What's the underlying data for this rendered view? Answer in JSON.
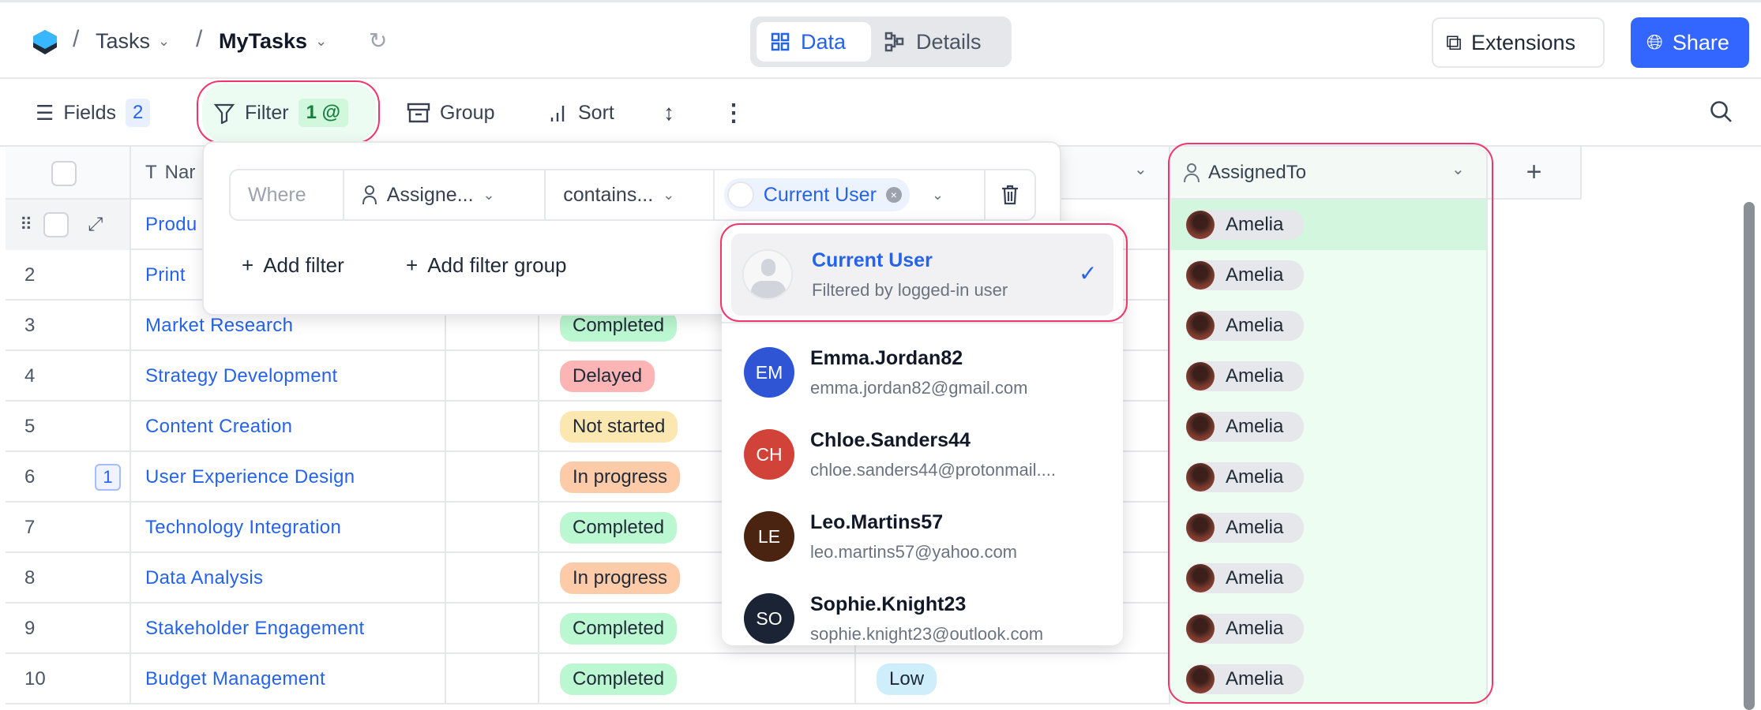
{
  "header": {
    "breadcrumb": [
      "Tasks",
      "MyTasks"
    ],
    "view_tabs": [
      {
        "label": "Data",
        "active": true
      },
      {
        "label": "Details",
        "active": false
      }
    ],
    "extensions_label": "Extensions",
    "share_label": "Share"
  },
  "toolbar": {
    "fields_label": "Fields",
    "fields_count": "2",
    "filter_label": "Filter",
    "filter_count": "1 @",
    "group_label": "Group",
    "sort_label": "Sort"
  },
  "columns": {
    "name": "Name",
    "name_visible": "Nar",
    "assigned": "AssignedTo"
  },
  "filter": {
    "where": "Where",
    "field": "Assigne...",
    "operator": "contains...",
    "value": "Current User",
    "add_filter": "Add filter",
    "add_group": "Add filter group"
  },
  "dropdown": {
    "current": {
      "name": "Current User",
      "sub": "Filtered by logged-in user",
      "selected": true
    },
    "users": [
      {
        "initials": "EM",
        "name": "Emma.Jordan82",
        "email": "emma.jordan82@gmail.com",
        "color": "#2f55d4"
      },
      {
        "initials": "CH",
        "name": "Chloe.Sanders44",
        "email": "chloe.sanders44@protonmail....",
        "color": "#d14338"
      },
      {
        "initials": "LE",
        "name": "Leo.Martins57",
        "email": "leo.martins57@yahoo.com",
        "color": "#4a2410"
      },
      {
        "initials": "SO",
        "name": "Sophie.Knight23",
        "email": "sophie.knight23@outlook.com",
        "color": "#1b2434"
      }
    ]
  },
  "rows": [
    {
      "num": "",
      "name": "Produ",
      "status": "",
      "priority": "",
      "assigned": "Amelia"
    },
    {
      "num": "2",
      "name": "Print",
      "status": "",
      "priority": "",
      "assigned": "Amelia"
    },
    {
      "num": "3",
      "name": "Market Research",
      "status": "Completed",
      "priority": "",
      "assigned": "Amelia"
    },
    {
      "num": "4",
      "name": "Strategy Development",
      "status": "Delayed",
      "priority": "",
      "assigned": "Amelia"
    },
    {
      "num": "5",
      "name": "Content Creation",
      "status": "Not started",
      "priority": "",
      "assigned": "Amelia"
    },
    {
      "num": "6",
      "name": "User Experience Design",
      "status": "In progress",
      "priority": "",
      "assigned": "Amelia",
      "comments": "1"
    },
    {
      "num": "7",
      "name": "Technology Integration",
      "status": "Completed",
      "priority": "",
      "assigned": "Amelia"
    },
    {
      "num": "8",
      "name": "Data Analysis",
      "status": "In progress",
      "priority": "",
      "assigned": "Amelia"
    },
    {
      "num": "9",
      "name": "Stakeholder Engagement",
      "status": "Completed",
      "priority": "",
      "assigned": "Amelia"
    },
    {
      "num": "10",
      "name": "Budget Management",
      "status": "Completed",
      "priority": "Low",
      "assigned": "Amelia"
    }
  ],
  "status_colors": {
    "Completed": "#bbf7d0",
    "Delayed": "#fdb4b4",
    "Not started": "#fde7b0",
    "In progress": "#fdcba8",
    "Low": "#cdeefa"
  },
  "accent": "#3366ff",
  "highlight": "#f0366a"
}
